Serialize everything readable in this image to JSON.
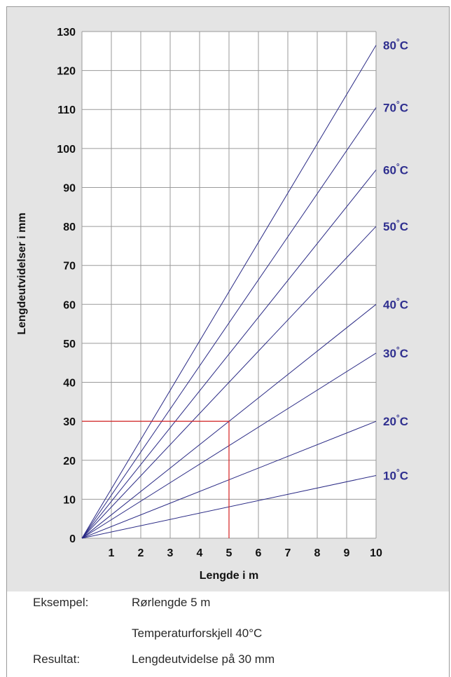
{
  "chart_data": {
    "type": "line",
    "title": "",
    "xlabel": "Lengde i m",
    "ylabel": "Lengdeutvidelser i mm",
    "xlim": [
      0,
      10
    ],
    "ylim": [
      0,
      130
    ],
    "x_ticks": [
      "1",
      "2",
      "3",
      "4",
      "5",
      "6",
      "7",
      "8",
      "9",
      "10"
    ],
    "y_ticks": [
      "0",
      "10",
      "20",
      "30",
      "40",
      "50",
      "60",
      "70",
      "80",
      "90",
      "100",
      "110",
      "120",
      "130"
    ],
    "grid": true,
    "series": [
      {
        "name": "10°C",
        "label_deg": "10",
        "label_unit": "C",
        "x": [
          0,
          10
        ],
        "y": [
          0,
          16.1
        ]
      },
      {
        "name": "20°C",
        "label_deg": "20",
        "label_unit": "C",
        "x": [
          0,
          10
        ],
        "y": [
          0,
          30.0
        ]
      },
      {
        "name": "30°C",
        "label_deg": "30",
        "label_unit": "C",
        "x": [
          0,
          10
        ],
        "y": [
          0,
          47.5
        ]
      },
      {
        "name": "40°C",
        "label_deg": "40",
        "label_unit": "C",
        "x": [
          0,
          10
        ],
        "y": [
          0,
          60.0
        ]
      },
      {
        "name": "50°C",
        "label_deg": "50",
        "label_unit": "C",
        "x": [
          0,
          10
        ],
        "y": [
          0,
          80.0
        ]
      },
      {
        "name": "60°C",
        "label_deg": "60",
        "label_unit": "C",
        "x": [
          0,
          10
        ],
        "y": [
          0,
          94.5
        ]
      },
      {
        "name": "70°C",
        "label_deg": "70",
        "label_unit": "C",
        "x": [
          0,
          10
        ],
        "y": [
          0,
          110.5
        ]
      },
      {
        "name": "80°C",
        "label_deg": "80",
        "label_unit": "C",
        "x": [
          0,
          10
        ],
        "y": [
          0,
          126.5
        ]
      }
    ],
    "example_marker": {
      "x": 5,
      "y": 30
    },
    "colors": {
      "series": "#2a2a85",
      "marker": "#d42020",
      "grid": "#9a9a9a",
      "label": "#2f2f8f"
    }
  },
  "caption": {
    "example_label": "Eksempel:",
    "example_line1": "Rørlengde 5 m",
    "example_line2": "Temperaturforskjell 40°C",
    "result_label": "Resultat:",
    "result_text": "Lengdeutvidelse på 30 mm"
  }
}
